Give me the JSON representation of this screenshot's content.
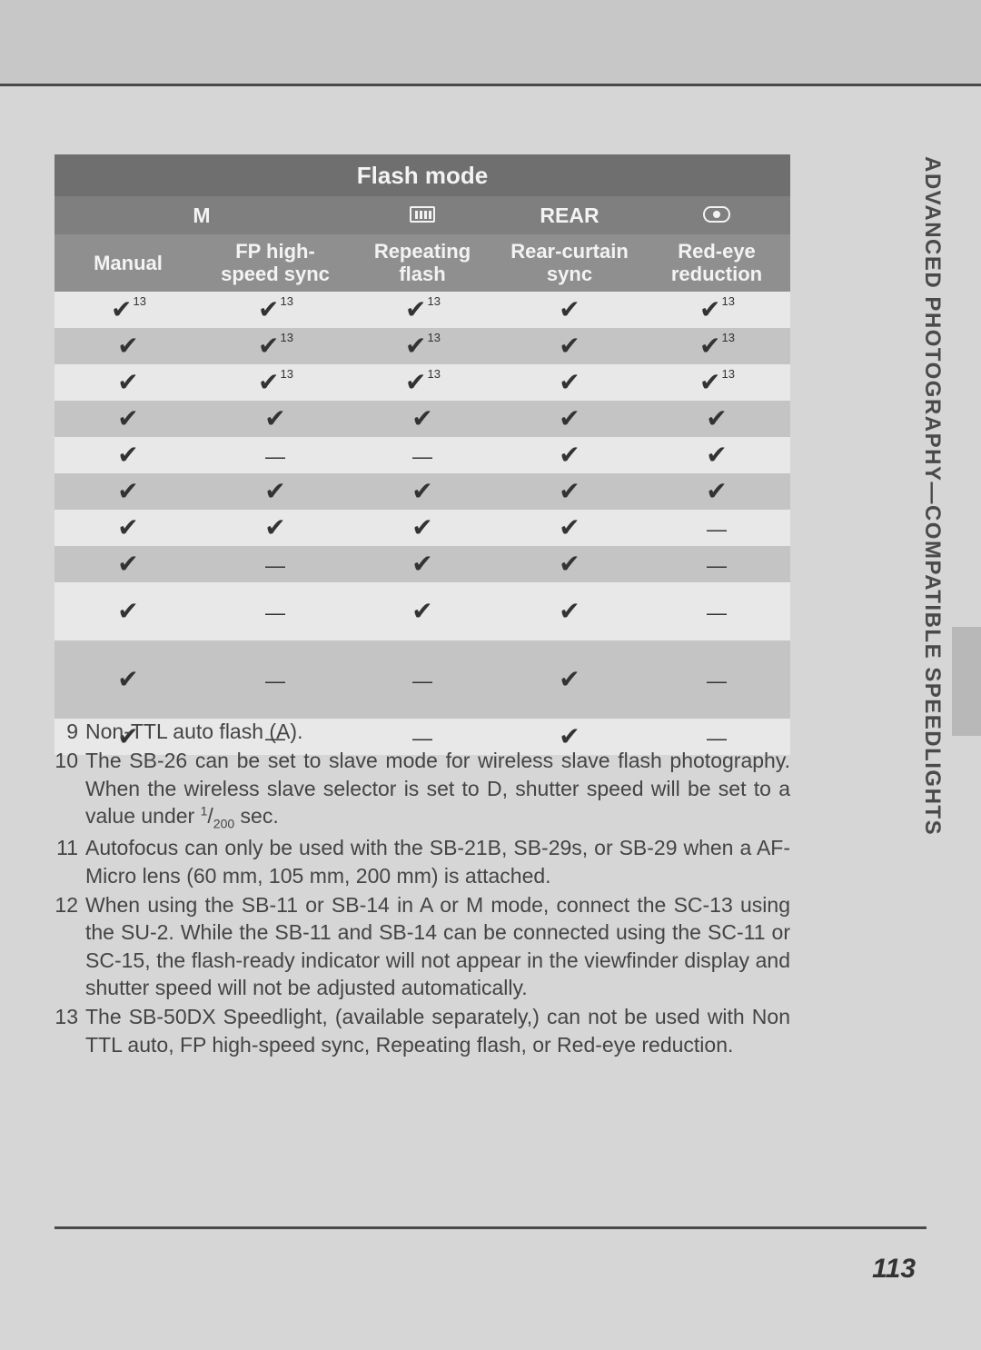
{
  "page_number": "113",
  "side_title": "ADVANCED PHOTOGRAPHY—COMPATIBLE SPEEDLIGHTS",
  "header_row1": "Flash mode",
  "header_row2": {
    "c1": "M",
    "c3": "REAR"
  },
  "header_row3": {
    "c1": "Manual",
    "c2": "FP high-\nspeed sync",
    "c3": "Repeating\nflash",
    "c4": "Rear-curtain\nsync",
    "c5": "Red-eye\nreduction"
  },
  "check_glyph": "✔",
  "dash_glyph": "—",
  "sup13": "13",
  "rows": [
    {
      "alt": "a",
      "h": "",
      "cells": [
        "check13",
        "check13",
        "check13",
        "check",
        "check13"
      ]
    },
    {
      "alt": "b",
      "h": "",
      "cells": [
        "check",
        "check13",
        "check13",
        "check",
        "check13"
      ]
    },
    {
      "alt": "a",
      "h": "",
      "cells": [
        "check",
        "check13",
        "check13",
        "check",
        "check13"
      ]
    },
    {
      "alt": "b",
      "h": "",
      "cells": [
        "check",
        "check",
        "check",
        "check",
        "check"
      ]
    },
    {
      "alt": "a",
      "h": "",
      "cells": [
        "check",
        "dash",
        "dash",
        "check",
        "check"
      ]
    },
    {
      "alt": "b",
      "h": "",
      "cells": [
        "check",
        "check",
        "check",
        "check",
        "check"
      ]
    },
    {
      "alt": "a",
      "h": "",
      "cells": [
        "check",
        "check",
        "check",
        "check",
        "dash"
      ]
    },
    {
      "alt": "b",
      "h": "",
      "cells": [
        "check",
        "dash",
        "check",
        "check",
        "dash"
      ]
    },
    {
      "alt": "a",
      "h": "tall",
      "cells": [
        "check",
        "dash",
        "check",
        "check",
        "dash"
      ]
    },
    {
      "alt": "b",
      "h": "xtall",
      "cells": [
        "check",
        "dash",
        "dash",
        "check",
        "dash"
      ]
    },
    {
      "alt": "a",
      "h": "",
      "cells": [
        "check",
        "dash",
        "dash",
        "check",
        "dash"
      ]
    }
  ],
  "notes": [
    {
      "n": "9",
      "t": "Non-TTL auto flash (A)."
    },
    {
      "n": "10",
      "t": "The SB-26 can be set to slave mode for wireless slave flash photography.  When the wireless slave selector is set to D, shutter speed will be set to a value under <span class=\"frac-num\">1</span>/<span class=\"frac-den\">200</span> sec."
    },
    {
      "n": "11",
      "t": "Autofocus can only be used with the SB-21B, SB-29s, or SB-29 when a AF-Micro lens (60 mm, 105 mm, 200 mm) is attached."
    },
    {
      "n": "12",
      "t": "When using the SB-11 or SB-14 in A or M mode, connect the SC-13 using the SU-2. While the SB-11 and SB-14 can be connected using the SC-11 or SC-15, the flash-ready indicator will not appear in the viewfinder display and shutter speed will not be adjusted automatically."
    },
    {
      "n": "13",
      "t": "The SB-50DX Speedlight, (available separately,) can not be used with Non TTL auto, FP high-speed sync, Repeating flash, or Red-eye reduction."
    }
  ],
  "colors": {
    "page_bg": "#d6d6d6",
    "hdr1_bg": "#6f6f6f",
    "hdr2_bg": "#7f7f7f",
    "hdr3_bg": "#8f8f8f",
    "row_a": "#e8e8e8",
    "row_b": "#c4c4c4",
    "text": "#4a4a4a"
  }
}
